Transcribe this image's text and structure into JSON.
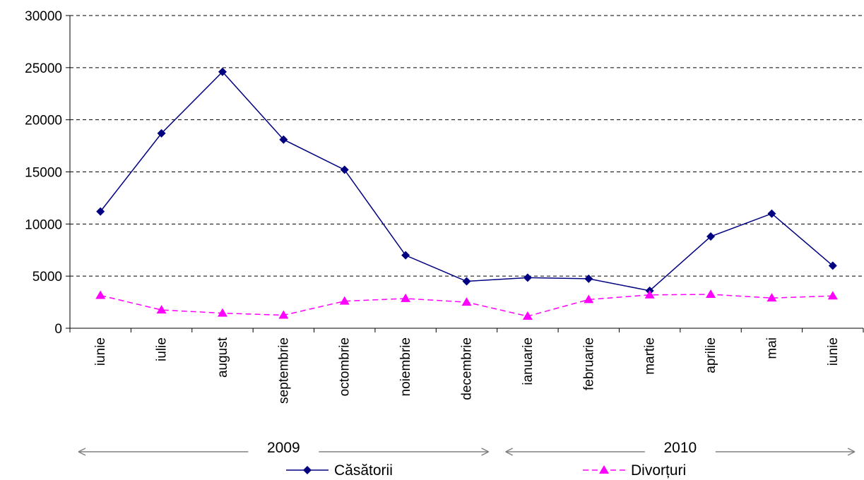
{
  "chart_data": {
    "type": "line",
    "categories": [
      "iunie",
      "iulie",
      "august",
      "septembrie",
      "octombrie",
      "noiembrie",
      "decembrie",
      "ianuarie",
      "februarie",
      "martie",
      "aprilie",
      "mai",
      "iunie"
    ],
    "year_groups": [
      {
        "label": "2009",
        "from": 0,
        "to": 6
      },
      {
        "label": "2010",
        "from": 7,
        "to": 12
      }
    ],
    "series": [
      {
        "name": "Căsătorii",
        "color": "#000080",
        "marker": "diamond",
        "dash": "solid",
        "values": [
          11200,
          18700,
          24600,
          18100,
          15200,
          7000,
          4500,
          4850,
          4750,
          3600,
          8800,
          11000,
          6000
        ]
      },
      {
        "name": "Divorțuri",
        "color": "#ff00ff",
        "marker": "triangle",
        "dash": "dashed",
        "values": [
          3150,
          1750,
          1450,
          1250,
          2600,
          2850,
          2500,
          1150,
          2750,
          3200,
          3250,
          2900,
          3100
        ]
      }
    ],
    "ylim": [
      0,
      30000
    ],
    "yticks": [
      0,
      5000,
      10000,
      15000,
      20000,
      25000,
      30000
    ],
    "grid": "horizontal dashed",
    "legend": "bottom"
  }
}
